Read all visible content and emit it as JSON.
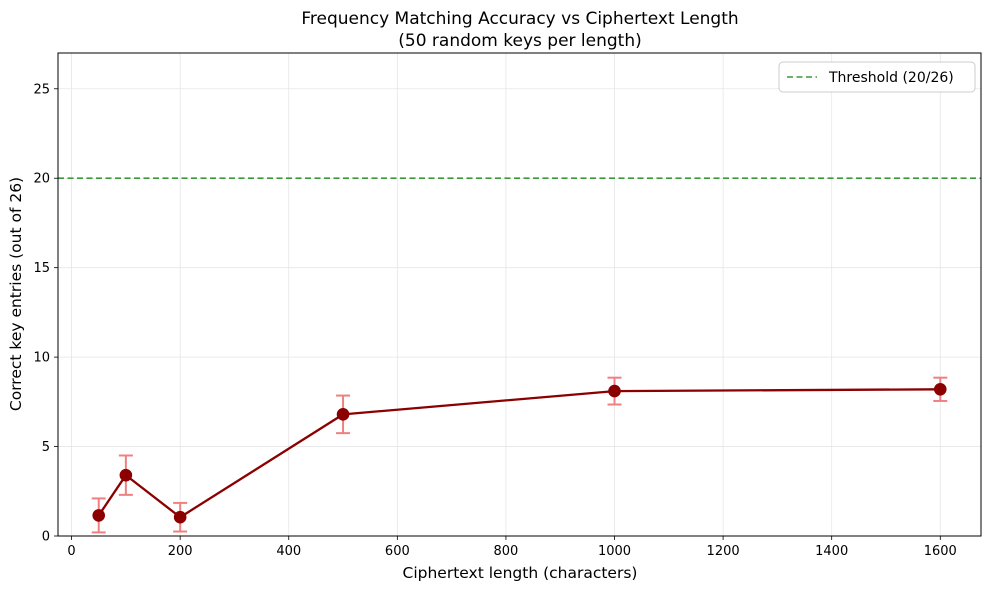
{
  "chart_data": {
    "type": "line",
    "title": "Frequency Matching Accuracy vs Ciphertext Length",
    "subtitle": "(50 random keys per length)",
    "xlabel": "Ciphertext length (characters)",
    "ylabel": "Correct key entries (out of 26)",
    "xlim": [
      -25,
      1675
    ],
    "ylim": [
      0,
      27
    ],
    "xticks": [
      "0",
      "200",
      "400",
      "600",
      "800",
      "1000",
      "1200",
      "1400",
      "1600"
    ],
    "yticks": [
      "0",
      "5",
      "10",
      "15",
      "20",
      "25"
    ],
    "grid": true,
    "legend_position": "top-right",
    "series": [
      {
        "x": [
          50,
          100,
          200,
          500,
          1000,
          1600
        ],
        "y": [
          1.15,
          3.4,
          1.05,
          6.8,
          8.1,
          8.2
        ],
        "err": [
          0.95,
          1.1,
          0.8,
          1.05,
          0.75,
          0.65
        ],
        "color": "#8b0000",
        "err_color": "#f08080"
      }
    ],
    "threshold": {
      "name": "Threshold (20/26)",
      "value": 20,
      "color": "#3a9a3a"
    }
  }
}
